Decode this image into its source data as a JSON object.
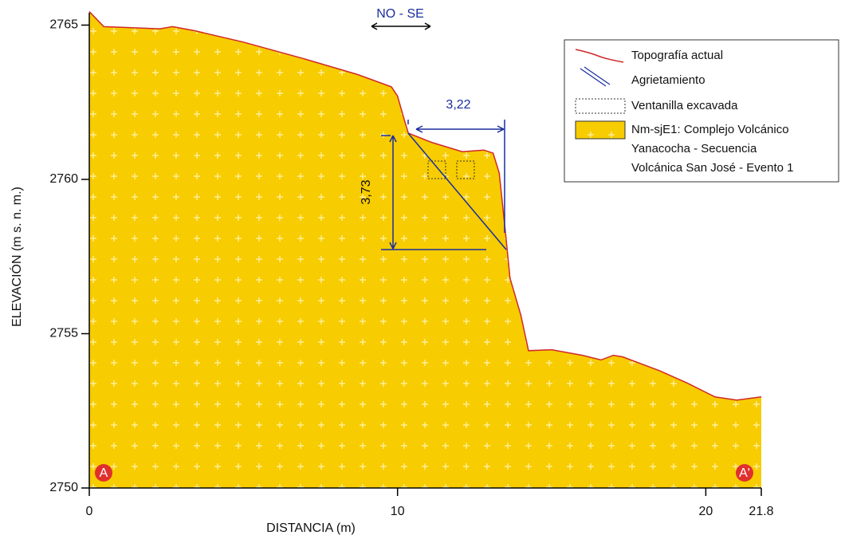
{
  "chart_data": {
    "type": "area",
    "x_label": "DISTANCIA (m)",
    "y_label": "ELEVACIÓN (m s. n. m.)",
    "xlim": [
      0,
      21.8
    ],
    "ylim": [
      2750,
      2765.4
    ],
    "xticks": [
      0,
      10,
      20,
      21.8
    ],
    "yticks": [
      2750,
      2755,
      2760,
      2765
    ],
    "x": [
      0,
      0.47,
      1.3,
      2.3,
      2.7,
      3.4,
      5.0,
      7.0,
      8.7,
      9.8,
      10.0,
      10.2,
      10.35,
      11.1,
      12.1,
      12.8,
      13.1,
      13.3,
      13.5,
      13.65,
      14.0,
      14.25,
      15.0,
      16.0,
      16.6,
      17.0,
      17.3,
      18.5,
      19.4,
      20.3,
      21.0,
      21.8
    ],
    "series": [
      {
        "name": "Topografía actual",
        "color": "#d0282a",
        "fill": "#f7cc00",
        "values": [
          2765.44,
          2764.95,
          2764.92,
          2764.88,
          2764.95,
          2764.82,
          2764.45,
          2763.9,
          2763.4,
          2763.0,
          2762.7,
          2762.0,
          2761.5,
          2761.2,
          2760.9,
          2760.95,
          2760.85,
          2760.2,
          2758.3,
          2756.8,
          2755.6,
          2754.45,
          2754.48,
          2754.3,
          2754.15,
          2754.3,
          2754.25,
          2753.8,
          2753.4,
          2752.95,
          2752.85,
          2752.95
        ]
      }
    ],
    "annotations": {
      "direction": "NO - SE",
      "width": "3,22",
      "height": "3,73",
      "start": "A",
      "end": "A'"
    },
    "legend": [
      "Topografía actual",
      "Agrietamiento",
      "Ventanilla excavada",
      "Nm-sjE1: Complejo Volcánico",
      "Yanacocha - Secuencia",
      "Volcánica San José - Evento 1"
    ]
  }
}
